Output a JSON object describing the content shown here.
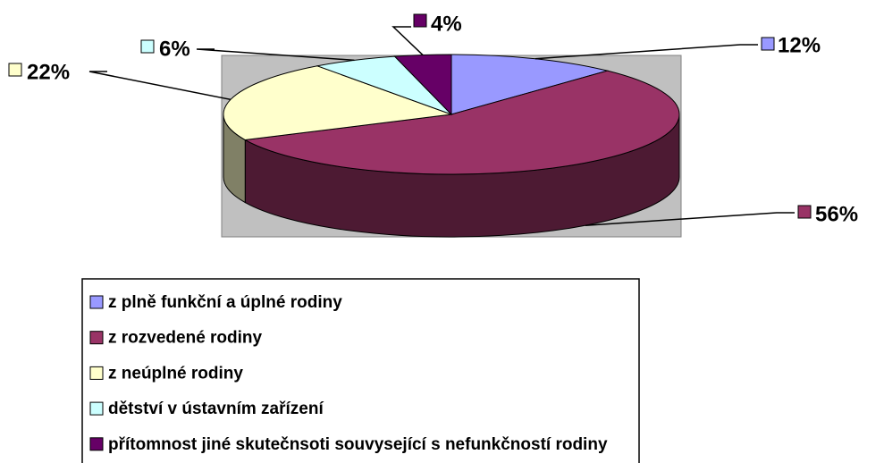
{
  "chart_data": {
    "type": "pie",
    "categories": [
      "z plně funkční a úplné rodiny",
      "z rozvedené rodiny",
      "z neúplné rodiny",
      "dětství v ústavním zařízení",
      "přítomnost jiné skutečnsoti souvysející s nefunkčností rodiny"
    ],
    "values": [
      12,
      56,
      22,
      6,
      4
    ],
    "value_labels": [
      "12%",
      "56%",
      "22%",
      "6%",
      "4%"
    ],
    "colors": [
      "#9999ff",
      "#993366",
      "#ffffcc",
      "#ccffff",
      "#660066"
    ]
  }
}
